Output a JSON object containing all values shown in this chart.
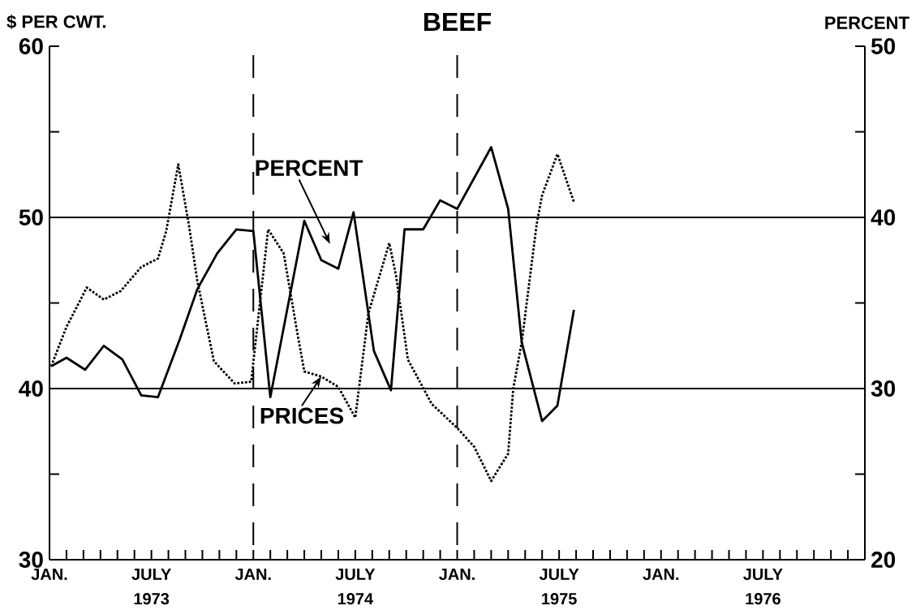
{
  "chart_data": {
    "type": "line",
    "title": "BEEF",
    "ylabel": "$ PER CWT.",
    "y2label": "PERCENT",
    "xlim": [
      "1973-01",
      "1977-01"
    ],
    "xticks": [
      {
        "value": "1973-01",
        "label": "JAN."
      },
      {
        "value": "1973-02",
        "label": null
      },
      {
        "value": "1973-03",
        "label": null
      },
      {
        "value": "1973-04",
        "label": null
      },
      {
        "value": "1973-05",
        "label": null
      },
      {
        "value": "1973-06",
        "label": null
      },
      {
        "value": "1973-07",
        "label": "JULY"
      },
      {
        "value": "1973-08",
        "label": null
      },
      {
        "value": "1973-09",
        "label": null
      },
      {
        "value": "1973-10",
        "label": null
      },
      {
        "value": "1973-11",
        "label": null
      },
      {
        "value": "1973-12",
        "label": null
      },
      {
        "value": "1974-01",
        "label": "JAN."
      },
      {
        "value": "1974-02",
        "label": null
      },
      {
        "value": "1974-03",
        "label": null
      },
      {
        "value": "1974-04",
        "label": null
      },
      {
        "value": "1974-05",
        "label": null
      },
      {
        "value": "1974-06",
        "label": null
      },
      {
        "value": "1974-07",
        "label": "JULY"
      },
      {
        "value": "1974-08",
        "label": null
      },
      {
        "value": "1974-09",
        "label": null
      },
      {
        "value": "1974-10",
        "label": null
      },
      {
        "value": "1974-11",
        "label": null
      },
      {
        "value": "1974-12",
        "label": null
      },
      {
        "value": "1975-01",
        "label": "JAN."
      },
      {
        "value": "1975-02",
        "label": null
      },
      {
        "value": "1975-03",
        "label": null
      },
      {
        "value": "1975-04",
        "label": null
      },
      {
        "value": "1975-05",
        "label": null
      },
      {
        "value": "1975-06",
        "label": null
      },
      {
        "value": "1975-07",
        "label": "JULY"
      },
      {
        "value": "1975-08",
        "label": null
      },
      {
        "value": "1975-09",
        "label": null
      },
      {
        "value": "1975-10",
        "label": null
      },
      {
        "value": "1975-11",
        "label": null
      },
      {
        "value": "1975-12",
        "label": null
      },
      {
        "value": "1976-01",
        "label": "JAN."
      },
      {
        "value": "1976-02",
        "label": null
      },
      {
        "value": "1976-03",
        "label": null
      },
      {
        "value": "1976-04",
        "label": null
      },
      {
        "value": "1976-05",
        "label": null
      },
      {
        "value": "1976-06",
        "label": null
      },
      {
        "value": "1976-07",
        "label": "JULY"
      },
      {
        "value": "1976-08",
        "label": null
      },
      {
        "value": "1976-09",
        "label": null
      },
      {
        "value": "1976-10",
        "label": null
      },
      {
        "value": "1976-11",
        "label": null
      },
      {
        "value": "1976-12",
        "label": null
      },
      {
        "value": "1977-01",
        "label": null
      }
    ],
    "ylim": [
      30,
      60
    ],
    "yticks": [
      30,
      {
        "value": 35,
        "label": null
      },
      40,
      {
        "value": 45,
        "label": null
      },
      50,
      {
        "value": 55,
        "label": null
      },
      60
    ],
    "y2lim": [
      20,
      50
    ],
    "y2ticks": [
      20,
      {
        "value": 25,
        "label": null
      },
      30,
      {
        "value": 35,
        "label": null
      },
      40,
      {
        "value": 45,
        "label": null
      },
      50
    ],
    "series": [
      {
        "color": "#000000",
        "line_style": "dotted",
        "x": [
          "1973-01-04",
          "1973-02-01",
          "1973-03-07",
          "1973-04-07",
          "1973-05-07",
          "1973-06-13",
          "1973-07-13",
          "1973-07-28",
          "1973-08-19",
          "1973-09-07",
          "1973-09-22",
          "1973-10-22",
          "1973-11-28",
          "1973-12-28",
          "1974-01-28",
          "1974-02-23",
          "1974-03-19",
          "1974-04-01",
          "1974-05-01",
          "1974-06-01",
          "1974-07-01",
          "1974-07-25",
          "1974-09-01",
          "1974-09-13",
          "1974-10-04",
          "1974-11-16",
          "1975-01-01",
          "1975-02-01",
          "1975-03-01",
          "1975-04-01",
          "1975-04-10",
          "1975-04-25",
          "1975-05-22",
          "1975-06-01",
          "1975-06-28",
          "1975-07-28"
        ],
        "values": [
          41.3,
          43.6,
          45.9,
          45.2,
          45.7,
          47.1,
          47.6,
          49.2,
          53.1,
          49.6,
          46.3,
          41.6,
          40.3,
          40.4,
          49.3,
          47.9,
          43.3,
          41.0,
          40.7,
          40.1,
          38.3,
          44.4,
          48.5,
          46.6,
          41.7,
          39.1,
          37.7,
          36.6,
          34.6,
          36.2,
          40.0,
          42.7,
          49.6,
          51.3,
          53.7,
          50.9
        ]
      },
      {
        "color": "#000000",
        "line_style": "solid",
        "axis": "y2",
        "x": [
          "1973-01-04",
          "1973-02-01",
          "1973-03-04",
          "1973-04-07",
          "1973-05-10",
          "1973-06-13",
          "1973-07-13",
          "1973-08-22",
          "1973-09-22",
          "1973-10-28",
          "1973-12-01",
          "1974-01-01",
          "1974-02-01",
          "1974-04-01",
          "1974-05-01",
          "1974-06-01",
          "1974-06-28",
          "1974-08-04",
          "1974-09-04",
          "1974-09-28",
          "1974-11-01",
          "1974-12-01",
          "1975-01-01",
          "1975-03-01",
          "1975-04-01",
          "1975-04-25",
          "1975-06-01",
          "1975-06-28",
          "1975-07-28"
        ],
        "values": [
          31.3,
          31.8,
          31.1,
          32.5,
          31.7,
          29.6,
          29.5,
          32.9,
          35.8,
          37.9,
          39.3,
          39.2,
          29.5,
          39.8,
          37.5,
          37.0,
          40.3,
          32.2,
          29.9,
          39.3,
          39.3,
          41.0,
          40.5,
          44.1,
          40.5,
          32.7,
          28.1,
          29.0,
          34.6
        ]
      }
    ],
    "ref_lines": [
      {
        "axis": "y",
        "value": 40,
        "line_style": "solid"
      },
      {
        "axis": "y",
        "value": 50,
        "line_style": "solid"
      },
      {
        "axis": "x",
        "value": "1974-01",
        "line_style": "dashed"
      },
      {
        "axis": "x",
        "value": "1975-01",
        "line_style": "dashed"
      }
    ],
    "annotations": [
      "1973",
      "1974",
      "1975",
      "1976",
      "PERCENT",
      {
        "text": "PRICES",
        "x": "1974-05-01",
        "y": 40.7
      }
    ],
    "grid": false,
    "legend": false,
    "marker": "none"
  }
}
